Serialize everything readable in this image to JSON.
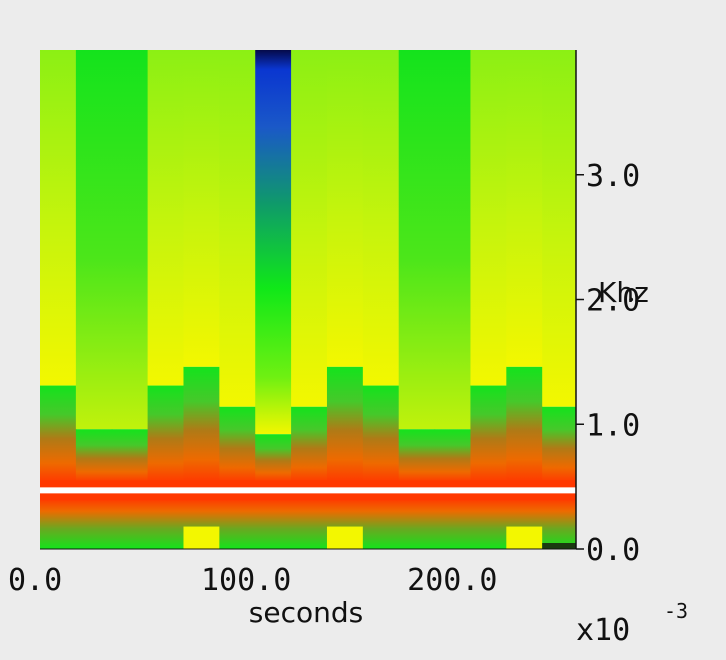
{
  "chart_data": {
    "type": "heatmap",
    "title": "",
    "xlabel": "seconds",
    "ylabel": "Khz",
    "x_multiplier": "x10",
    "x_multiplier_exp": "-3",
    "xlim": [
      0,
      260
    ],
    "ylim": [
      0,
      4.0
    ],
    "x_tick_labels": [
      {
        "value": 0,
        "text": "0.0"
      },
      {
        "value": 100,
        "text": "100.0"
      },
      {
        "value": 200,
        "text": "200.0"
      }
    ],
    "y_tick_labels": [
      {
        "value": 0,
        "text": "0.0"
      },
      {
        "value": 1,
        "text": "1.0"
      },
      {
        "value": 2,
        "text": "2.0"
      },
      {
        "value": 3,
        "text": "3.0"
      }
    ],
    "time_frame_width": 17.4,
    "time_frames": [
      0,
      17.4,
      34.8,
      52.2,
      69.6,
      87.0,
      104.4,
      121.8,
      139.2,
      156.6,
      174.0,
      191.4,
      208.8,
      226.2,
      243.6
    ],
    "low_band_top_khz": [
      1.31,
      0.96,
      0.96,
      1.31,
      1.46,
      1.14,
      0.92,
      1.14,
      1.46,
      1.31,
      0.96,
      0.96,
      1.31,
      1.46,
      1.14
    ],
    "high_band_style": [
      "yellow",
      "green",
      "green",
      "yellow",
      "yellow",
      "yellow",
      "blue",
      "yellow",
      "yellow",
      "yellow",
      "green",
      "green",
      "yellow",
      "yellow",
      "yellow"
    ],
    "bottom_bump_frames": [
      4,
      8,
      13
    ],
    "bottom_bump_khz": 0.18,
    "dark_bottom_frames": [
      14
    ],
    "line_khz": 0.47,
    "colors": {
      "yellow": "#f3f700",
      "green": "#14e31c",
      "lightgreen": "#8ff012",
      "red": "#ff3800",
      "orange": "#ee6a00",
      "blue": "#0a36d0",
      "navy": "#050a4a",
      "line": "#ffffff"
    }
  }
}
